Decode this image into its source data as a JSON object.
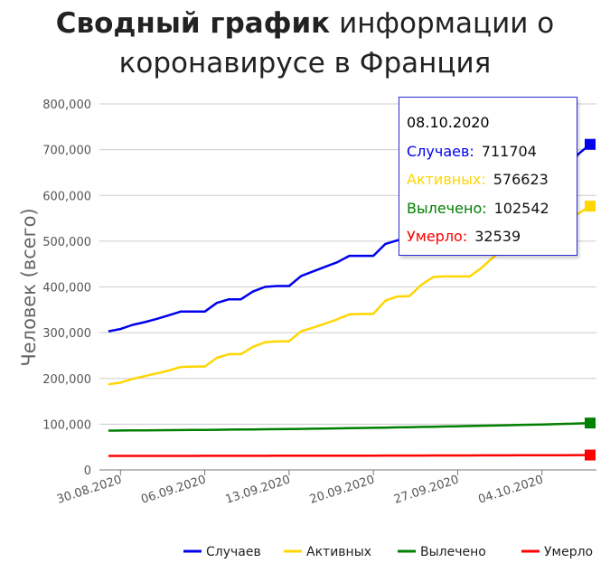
{
  "title": {
    "bold": "Сводный график",
    "rest": " информации о коронавирусе в Франция"
  },
  "tooltip": {
    "date": "08.10.2020",
    "rows": [
      {
        "label": "Случаев:",
        "value": "711704",
        "color": "#0000ee"
      },
      {
        "label": "Активных:",
        "value": "576623",
        "color": "#ffd600"
      },
      {
        "label": "Вылечено:",
        "value": "102542",
        "color": "#008000"
      },
      {
        "label": "Умерло:",
        "value": "32539",
        "color": "#ff0000"
      }
    ]
  },
  "chart_data": {
    "type": "line",
    "ylabel": "Человек (всего)",
    "ylim": [
      0,
      800000
    ],
    "yticks": [
      0,
      100000,
      200000,
      300000,
      400000,
      500000,
      600000,
      700000,
      800000
    ],
    "ytick_labels": [
      "0",
      "100,000",
      "200,000",
      "300,000",
      "400,000",
      "500,000",
      "600,000",
      "700,000",
      "800,000"
    ],
    "xticks": [
      "30.08.2020",
      "06.09.2020",
      "13.09.2020",
      "20.09.2020",
      "27.09.2020",
      "04.10.2020"
    ],
    "x": [
      "29.08.2020",
      "30.08.2020",
      "31.08.2020",
      "01.09.2020",
      "02.09.2020",
      "03.09.2020",
      "04.09.2020",
      "05.09.2020",
      "06.09.2020",
      "07.09.2020",
      "08.09.2020",
      "09.09.2020",
      "10.09.2020",
      "11.09.2020",
      "12.09.2020",
      "13.09.2020",
      "14.09.2020",
      "15.09.2020",
      "16.09.2020",
      "17.09.2020",
      "18.09.2020",
      "19.09.2020",
      "20.09.2020",
      "21.09.2020",
      "22.09.2020",
      "23.09.2020",
      "24.09.2020",
      "25.09.2020",
      "26.09.2020",
      "27.09.2020",
      "28.09.2020",
      "29.09.2020",
      "30.09.2020",
      "01.10.2020",
      "02.10.2020",
      "03.10.2020",
      "04.10.2020",
      "05.10.2020",
      "06.10.2020",
      "07.10.2020",
      "08.10.2020"
    ],
    "series": [
      {
        "name": "Случаев",
        "color": "#0000ee",
        "values": [
          303000,
          308000,
          317000,
          323000,
          330000,
          338000,
          346000,
          346000,
          346000,
          365000,
          373000,
          373000,
          390000,
          400000,
          402000,
          402000,
          424000,
          434000,
          444000,
          454000,
          468000,
          468000,
          468000,
          494000,
          502000,
          511000,
          524000,
          538000,
          551000,
          551000,
          551000,
          565000,
          577000,
          589000,
          605000,
          620000,
          632000,
          632000,
          654000,
          690000,
          711704
        ]
      },
      {
        "name": "Активных",
        "color": "#ffd600",
        "values": [
          187000,
          191000,
          199000,
          205000,
          211000,
          217000,
          225000,
          226000,
          226000,
          245000,
          253000,
          253000,
          269000,
          279000,
          281000,
          281000,
          303000,
          311000,
          320000,
          329000,
          340000,
          341000,
          341000,
          370000,
          379000,
          380000,
          405000,
          422000,
          423000,
          423000,
          423000,
          442000,
          466000,
          486000,
          495000,
          507000,
          520000,
          520000,
          541000,
          560000,
          576623
        ]
      },
      {
        "name": "Вылечено",
        "color": "#008000",
        "values": [
          86000,
          86200,
          86400,
          86600,
          86800,
          87000,
          87200,
          87400,
          87600,
          87800,
          88000,
          88200,
          88500,
          88800,
          89100,
          89400,
          89700,
          90000,
          90400,
          90800,
          91200,
          91600,
          92000,
          92500,
          93000,
          93500,
          94000,
          94500,
          95000,
          95500,
          96000,
          96500,
          97000,
          97600,
          98200,
          98800,
          99400,
          100000,
          100800,
          101600,
          102542
        ]
      },
      {
        "name": "Умерло",
        "color": "#ff0000",
        "values": [
          30600,
          30610,
          30630,
          30640,
          30660,
          30680,
          30700,
          30710,
          30720,
          30730,
          30760,
          30800,
          30860,
          30910,
          30950,
          30990,
          31000,
          31040,
          31100,
          31150,
          31210,
          31250,
          31300,
          31350,
          31410,
          31460,
          31500,
          31550,
          31600,
          31650,
          31700,
          31780,
          31830,
          31880,
          31950,
          32030,
          32100,
          32150,
          32250,
          32400,
          32539
        ]
      }
    ]
  }
}
